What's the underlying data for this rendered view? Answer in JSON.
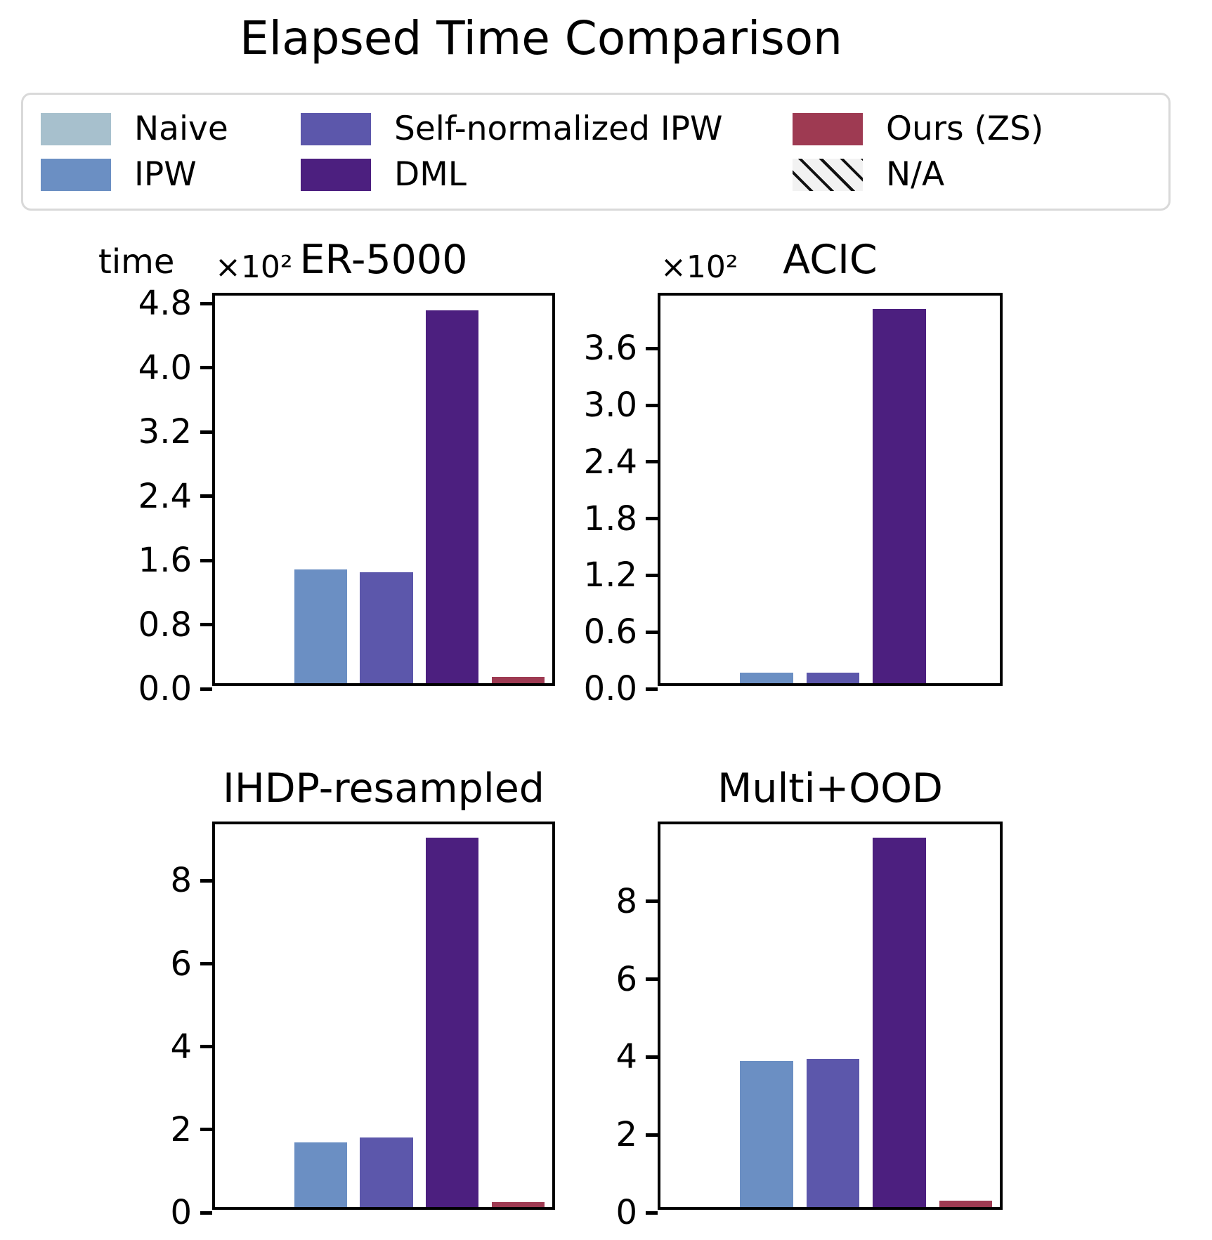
{
  "page": {
    "title": "Elapsed Time Comparison"
  },
  "legend": {
    "items": [
      {
        "label": "Naive",
        "color": "#a7c0cd",
        "type": "solid"
      },
      {
        "label": "IPW",
        "color": "#6b8fc3",
        "type": "solid"
      },
      {
        "label": "Self-normalized IPW",
        "color": "#5c57ab",
        "type": "solid"
      },
      {
        "label": "DML",
        "color": "#4c1f7f",
        "type": "solid"
      },
      {
        "label": "Ours (ZS)",
        "color": "#9e3a52",
        "type": "solid"
      },
      {
        "label": "N/A",
        "color": "#f2f2f2",
        "type": "hatched"
      }
    ]
  },
  "chart_data": {
    "type": "bar",
    "title": "Elapsed Time Comparison",
    "ylabel": "time",
    "legend_position": "top",
    "grid": false,
    "categories": [
      "Naive",
      "IPW",
      "Self-normalized IPW",
      "DML",
      "Ours (ZS)"
    ],
    "colors": [
      "#a7c0cd",
      "#6b8fc3",
      "#5c57ab",
      "#4c1f7f",
      "#9e3a52"
    ],
    "na_meaning": "null value = N/A (no bar drawn)",
    "subplots": [
      {
        "title": "ER-5000",
        "offset_text": "×10²",
        "unit_multiplier": 100,
        "ylim": [
          0,
          4.9
        ],
        "tick_values": [
          0.0,
          0.8,
          1.6,
          2.4,
          3.2,
          4.0,
          4.8
        ],
        "tick_labels": [
          "0.0",
          "0.8",
          "1.6",
          "2.4",
          "3.2",
          "4.0",
          "4.8"
        ],
        "values": [
          null,
          1.42,
          1.38,
          4.65,
          0.08
        ]
      },
      {
        "title": "ACIC",
        "offset_text": "×10²",
        "unit_multiplier": 100,
        "ylim": [
          0,
          4.16
        ],
        "tick_values": [
          0.0,
          0.6,
          1.2,
          1.8,
          2.4,
          3.0,
          3.6
        ],
        "tick_labels": [
          "0.0",
          "0.6",
          "1.2",
          "1.8",
          "2.4",
          "3.0",
          "3.6"
        ],
        "values": [
          null,
          0.11,
          0.11,
          3.96,
          0.0
        ]
      },
      {
        "title": "IHDP-resampled",
        "offset_text": null,
        "unit_multiplier": 1,
        "ylim": [
          0,
          9.36
        ],
        "tick_values": [
          0,
          2,
          4,
          6,
          8
        ],
        "tick_labels": [
          "0",
          "2",
          "4",
          "6",
          "8"
        ],
        "values": [
          null,
          1.56,
          1.68,
          8.9,
          0.12
        ]
      },
      {
        "title": "Multi+OOD",
        "offset_text": null,
        "unit_multiplier": 1,
        "ylim": [
          0,
          9.98
        ],
        "tick_values": [
          0,
          2,
          4,
          6,
          8
        ],
        "tick_labels": [
          "0",
          "2",
          "4",
          "6",
          "8"
        ],
        "values": [
          null,
          3.75,
          3.8,
          9.5,
          0.16
        ]
      }
    ]
  }
}
